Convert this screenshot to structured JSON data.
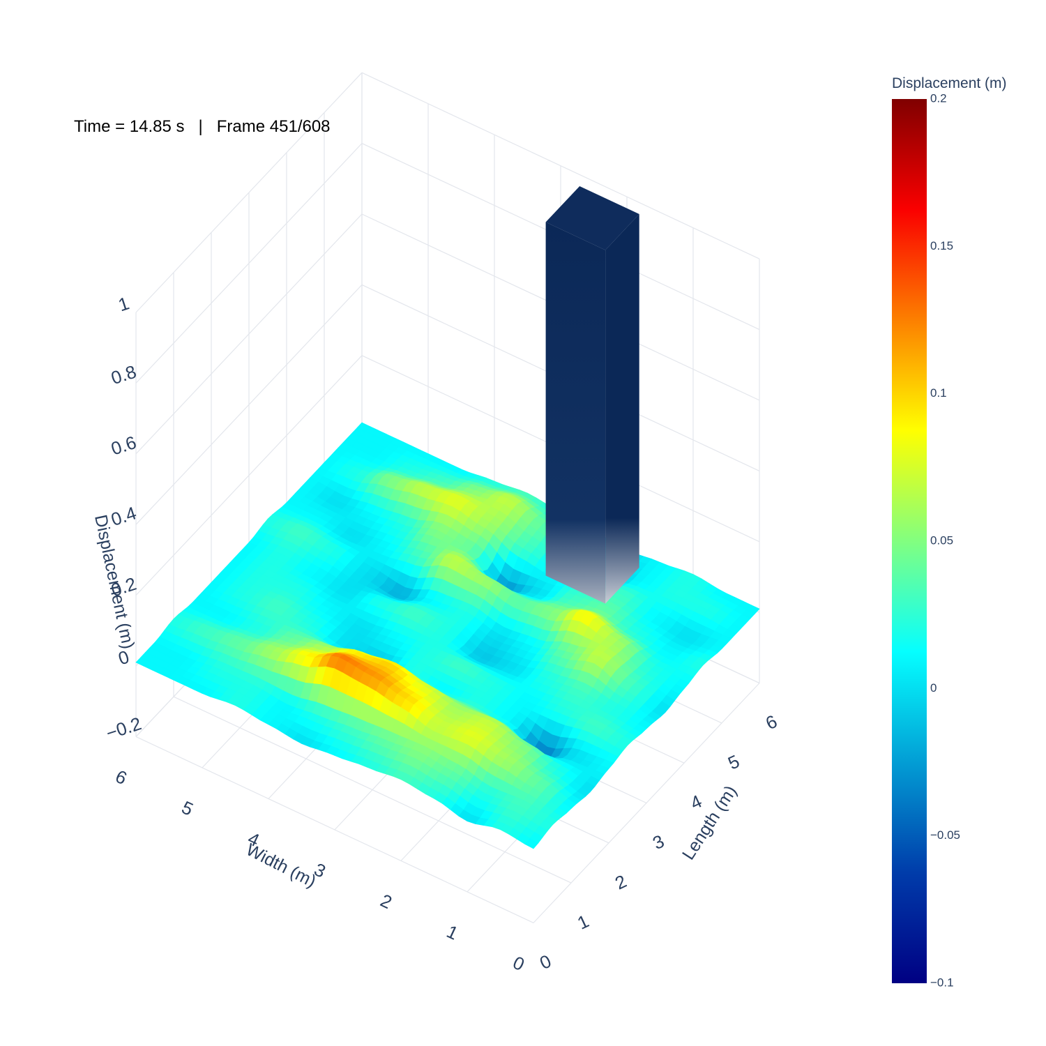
{
  "annotation": "Time = 14.85 s   |   Frame 451/608",
  "colorbar": {
    "title": "Displacement (m)",
    "range": [
      -0.1,
      0.2
    ],
    "ticks": [
      "0.2",
      "0.15",
      "0.1",
      "0.05",
      "0",
      "−0.05",
      "−0.1"
    ],
    "colorscale": "Jet"
  },
  "chart_data": {
    "type": "surface",
    "x_axis": {
      "title": "Width (m)",
      "range": [
        0,
        6
      ],
      "ticks": [
        "0",
        "1",
        "2",
        "3",
        "4",
        "5",
        "6"
      ]
    },
    "y_axis": {
      "title": "Length (m)",
      "range": [
        0,
        6
      ],
      "ticks": [
        "0",
        "1",
        "2",
        "3",
        "4",
        "5",
        "6"
      ]
    },
    "z_axis": {
      "title": "Displacement (m)",
      "range": [
        -0.2,
        1
      ],
      "ticks": [
        "−0.2",
        "0",
        "0.2",
        "0.4",
        "0.6",
        "0.8",
        "1"
      ]
    },
    "surface": {
      "description_values": "approximate displacement field z(x,y) in meters on a 13x13 grid, x = width 0..6 step 0.5, y = length 0..6 step 0.5",
      "grid_step": 0.5,
      "z": [
        [
          0.01,
          0.02,
          0.0,
          0.02,
          0.03,
          0.02,
          0.01,
          0.0,
          0.01,
          0.02,
          0.01,
          0.01,
          0.01
        ],
        [
          0.02,
          0.03,
          0.02,
          0.04,
          0.05,
          0.04,
          0.03,
          0.02,
          0.01,
          0.02,
          0.02,
          0.01,
          0.01
        ],
        [
          0.01,
          0.04,
          0.06,
          0.08,
          0.07,
          0.1,
          0.12,
          0.13,
          0.09,
          0.06,
          0.04,
          0.03,
          0.02
        ],
        [
          0.0,
          0.02,
          0.05,
          0.07,
          0.06,
          0.08,
          0.1,
          0.09,
          0.06,
          0.04,
          0.02,
          0.01,
          0.01
        ],
        [
          0.01,
          0.0,
          -0.04,
          0.01,
          0.02,
          0.01,
          0.02,
          -0.01,
          0.0,
          0.02,
          0.03,
          0.02,
          0.01
        ],
        [
          0.02,
          0.03,
          0.02,
          0.01,
          0.02,
          0.03,
          0.02,
          0.01,
          0.0,
          0.01,
          0.02,
          0.02,
          0.01
        ],
        [
          0.01,
          0.02,
          0.03,
          0.02,
          0.0,
          -0.01,
          0.02,
          0.03,
          0.02,
          0.0,
          0.01,
          0.02,
          0.01
        ],
        [
          0.0,
          0.03,
          0.07,
          0.04,
          0.01,
          0.0,
          0.02,
          0.01,
          -0.02,
          0.0,
          0.02,
          0.03,
          0.02
        ],
        [
          0.01,
          0.02,
          0.06,
          0.09,
          0.05,
          0.04,
          0.06,
          0.07,
          0.03,
          0.01,
          0.0,
          0.01,
          0.01
        ],
        [
          0.02,
          0.01,
          0.02,
          0.04,
          0.03,
          0.0,
          -0.03,
          0.04,
          0.05,
          0.02,
          0.01,
          0.0,
          0.01
        ],
        [
          0.01,
          0.0,
          0.01,
          0.03,
          0.02,
          0.01,
          0.03,
          0.06,
          0.08,
          0.07,
          0.05,
          0.02,
          0.01
        ],
        [
          0.01,
          0.02,
          0.02,
          0.01,
          -0.02,
          0.01,
          0.04,
          0.07,
          0.05,
          0.03,
          0.02,
          0.01,
          0.01
        ],
        [
          0.01,
          0.01,
          0.02,
          0.01,
          0.0,
          0.01,
          0.02,
          0.03,
          0.02,
          0.01,
          0.01,
          0.01,
          0.01
        ]
      ]
    },
    "column": {
      "description_values": "rectangular block rising from the surface to z = 1",
      "x_range": [
        1.7,
        2.6
      ],
      "y_range": [
        4.9,
        5.8
      ],
      "z_range": [
        0,
        1.0
      ],
      "color": "#0b2857"
    }
  }
}
